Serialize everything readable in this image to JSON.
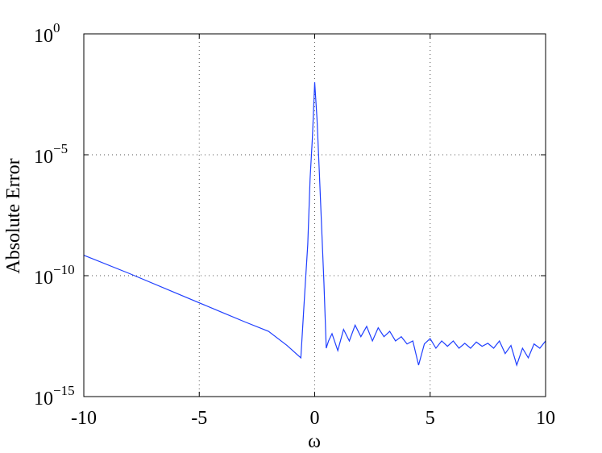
{
  "chart_data": {
    "type": "line",
    "x_label": "ω",
    "y_label": "Absolute Error",
    "xlim": [
      -10,
      10
    ],
    "xticks": [
      -10,
      -5,
      0,
      5,
      10
    ],
    "ylim": [
      1e-15,
      1
    ],
    "ylog": true,
    "yticks": [
      {
        "value": 1e-15,
        "label": "10",
        "exponent": "−15"
      },
      {
        "value": 1e-10,
        "label": "10",
        "exponent": "−10"
      },
      {
        "value": 1e-05,
        "label": "10",
        "exponent": "−5"
      },
      {
        "value": 1,
        "label": "10",
        "exponent": "0"
      }
    ],
    "grid": true,
    "series": [
      {
        "color": "#1f3fff",
        "x": [
          -10,
          -8,
          -6,
          -4,
          -3,
          -2,
          -1.2,
          -0.6,
          -0.45,
          -0.3,
          -0.2,
          -0.1,
          0,
          0.1,
          0.2,
          0.3,
          0.4,
          0.5,
          0.6,
          0.75,
          1.0,
          1.25,
          1.5,
          1.75,
          2.0,
          2.25,
          2.5,
          2.75,
          3.0,
          3.25,
          3.5,
          3.75,
          4.0,
          4.25,
          4.5,
          4.75,
          5.0,
          5.25,
          5.5,
          5.75,
          6.0,
          6.25,
          6.5,
          6.75,
          7.0,
          7.25,
          7.5,
          7.75,
          8.0,
          8.25,
          8.5,
          8.75,
          9.0,
          9.25,
          9.5,
          9.75,
          10
        ],
        "values": [
          7e-10,
          1.2e-10,
          1.9e-11,
          3e-12,
          1.2e-12,
          5e-13,
          1.3e-13,
          4e-14,
          1e-11,
          2e-09,
          1e-06,
          5e-05,
          0.01,
          0.0003,
          2e-06,
          1e-08,
          5e-11,
          1e-13,
          2e-13,
          4e-13,
          8e-14,
          6e-13,
          2e-13,
          9e-13,
          3e-13,
          8e-13,
          2e-13,
          7e-13,
          3e-13,
          5e-13,
          2e-13,
          3e-13,
          1.5e-13,
          2e-13,
          2e-14,
          1.5e-13,
          2.5e-13,
          1e-13,
          2e-13,
          1.2e-13,
          2e-13,
          1e-13,
          1.6e-13,
          1e-13,
          1.8e-13,
          1.2e-13,
          1.6e-13,
          1e-13,
          2e-13,
          6e-14,
          1.3e-13,
          2e-14,
          1e-13,
          4e-14,
          1.5e-13,
          1e-13,
          2e-13
        ]
      }
    ]
  }
}
